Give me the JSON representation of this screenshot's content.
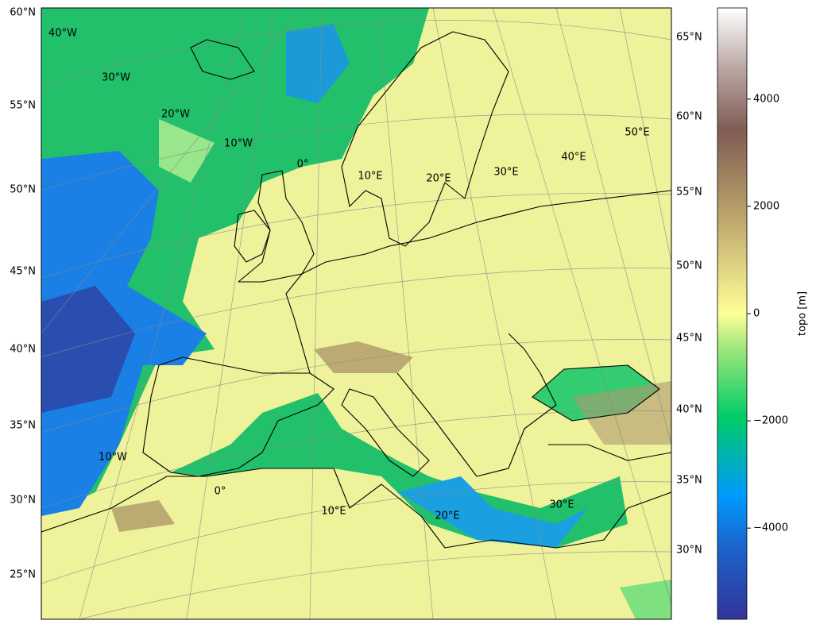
{
  "map": {
    "left_lat_labels": [
      "60°N",
      "55°N",
      "50°N",
      "45°N",
      "40°N",
      "35°N",
      "30°N",
      "25°N"
    ],
    "right_lat_labels": [
      "65°N",
      "60°N",
      "55°N",
      "50°N",
      "45°N",
      "40°N",
      "35°N",
      "30°N"
    ],
    "top_lon_labels": [
      "40°W",
      "30°W",
      "20°W",
      "10°W",
      "0°",
      "10°E",
      "20°E",
      "30°E",
      "40°E",
      "50°E"
    ],
    "bottom_lon_labels": [
      "10°W",
      "0°",
      "10°E",
      "20°E",
      "30°E"
    ]
  },
  "colorbar": {
    "label": "topo [m]",
    "range": [
      -5700,
      5700
    ],
    "ticks": [
      4000,
      2000,
      0,
      {
        "value": -2000,
        "label": "−2000"
      },
      {
        "value": -4000,
        "label": "−4000"
      }
    ]
  }
}
